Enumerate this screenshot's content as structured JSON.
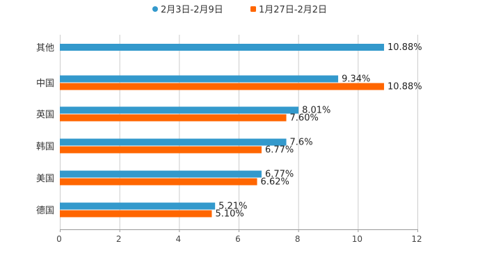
{
  "chart_data": {
    "type": "bar",
    "orientation": "horizontal",
    "title": "",
    "xlabel": "",
    "ylabel": "",
    "xlim": [
      0,
      12
    ],
    "xticks": [
      0,
      2,
      4,
      6,
      8,
      10,
      12
    ],
    "xtick_labels": [
      "0",
      "2",
      "4",
      "6",
      "8",
      "10",
      "12"
    ],
    "grid": true,
    "legend_position": "top-center",
    "categories": [
      "其他",
      "中国",
      "英国",
      "韩国",
      "美国",
      "德国"
    ],
    "series": [
      {
        "name": "2月3日-2月9日",
        "color": "#3399cc",
        "values": [
          10.88,
          9.34,
          8.01,
          7.6,
          6.77,
          5.21
        ],
        "labels": [
          "10.88%",
          "9.34%",
          "8.01%",
          "7.6%",
          "6.77%",
          "5.21%"
        ]
      },
      {
        "name": "1月27日-2月2日",
        "color": "#ff6600",
        "values": [
          null,
          10.88,
          7.6,
          6.77,
          6.62,
          5.1
        ],
        "labels": [
          null,
          "10.88%",
          "7.60%",
          "6.77%",
          "6.62%",
          "5.10%"
        ]
      }
    ]
  }
}
